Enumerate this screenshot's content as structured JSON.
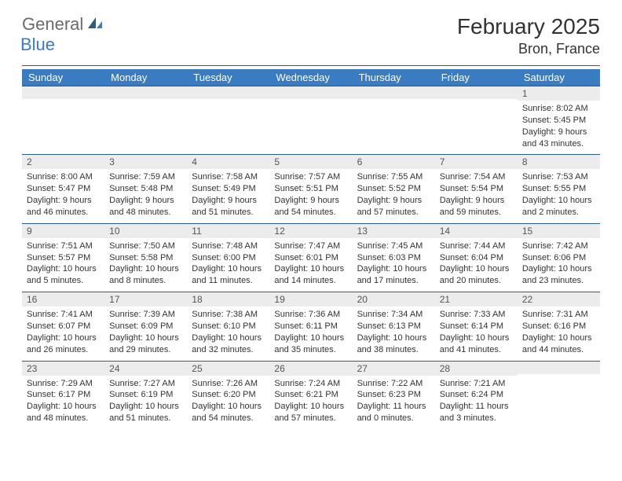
{
  "logo": {
    "text_general": "General",
    "text_blue": "Blue"
  },
  "title": "February 2025",
  "location": "Bron, France",
  "colors": {
    "header_bg": "#3a7cc2",
    "header_text": "#ffffff",
    "row_border": "#2a5b8a",
    "daynum_bg": "#ececec",
    "body_text": "#333333",
    "logo_gray": "#6b6b6b",
    "logo_blue": "#3a7cc2"
  },
  "day_headers": [
    "Sunday",
    "Monday",
    "Tuesday",
    "Wednesday",
    "Thursday",
    "Friday",
    "Saturday"
  ],
  "weeks": [
    [
      {
        "num": "",
        "sunrise": "",
        "sunset": "",
        "daylight": ""
      },
      {
        "num": "",
        "sunrise": "",
        "sunset": "",
        "daylight": ""
      },
      {
        "num": "",
        "sunrise": "",
        "sunset": "",
        "daylight": ""
      },
      {
        "num": "",
        "sunrise": "",
        "sunset": "",
        "daylight": ""
      },
      {
        "num": "",
        "sunrise": "",
        "sunset": "",
        "daylight": ""
      },
      {
        "num": "",
        "sunrise": "",
        "sunset": "",
        "daylight": ""
      },
      {
        "num": "1",
        "sunrise": "Sunrise: 8:02 AM",
        "sunset": "Sunset: 5:45 PM",
        "daylight": "Daylight: 9 hours and 43 minutes."
      }
    ],
    [
      {
        "num": "2",
        "sunrise": "Sunrise: 8:00 AM",
        "sunset": "Sunset: 5:47 PM",
        "daylight": "Daylight: 9 hours and 46 minutes."
      },
      {
        "num": "3",
        "sunrise": "Sunrise: 7:59 AM",
        "sunset": "Sunset: 5:48 PM",
        "daylight": "Daylight: 9 hours and 48 minutes."
      },
      {
        "num": "4",
        "sunrise": "Sunrise: 7:58 AM",
        "sunset": "Sunset: 5:49 PM",
        "daylight": "Daylight: 9 hours and 51 minutes."
      },
      {
        "num": "5",
        "sunrise": "Sunrise: 7:57 AM",
        "sunset": "Sunset: 5:51 PM",
        "daylight": "Daylight: 9 hours and 54 minutes."
      },
      {
        "num": "6",
        "sunrise": "Sunrise: 7:55 AM",
        "sunset": "Sunset: 5:52 PM",
        "daylight": "Daylight: 9 hours and 57 minutes."
      },
      {
        "num": "7",
        "sunrise": "Sunrise: 7:54 AM",
        "sunset": "Sunset: 5:54 PM",
        "daylight": "Daylight: 9 hours and 59 minutes."
      },
      {
        "num": "8",
        "sunrise": "Sunrise: 7:53 AM",
        "sunset": "Sunset: 5:55 PM",
        "daylight": "Daylight: 10 hours and 2 minutes."
      }
    ],
    [
      {
        "num": "9",
        "sunrise": "Sunrise: 7:51 AM",
        "sunset": "Sunset: 5:57 PM",
        "daylight": "Daylight: 10 hours and 5 minutes."
      },
      {
        "num": "10",
        "sunrise": "Sunrise: 7:50 AM",
        "sunset": "Sunset: 5:58 PM",
        "daylight": "Daylight: 10 hours and 8 minutes."
      },
      {
        "num": "11",
        "sunrise": "Sunrise: 7:48 AM",
        "sunset": "Sunset: 6:00 PM",
        "daylight": "Daylight: 10 hours and 11 minutes."
      },
      {
        "num": "12",
        "sunrise": "Sunrise: 7:47 AM",
        "sunset": "Sunset: 6:01 PM",
        "daylight": "Daylight: 10 hours and 14 minutes."
      },
      {
        "num": "13",
        "sunrise": "Sunrise: 7:45 AM",
        "sunset": "Sunset: 6:03 PM",
        "daylight": "Daylight: 10 hours and 17 minutes."
      },
      {
        "num": "14",
        "sunrise": "Sunrise: 7:44 AM",
        "sunset": "Sunset: 6:04 PM",
        "daylight": "Daylight: 10 hours and 20 minutes."
      },
      {
        "num": "15",
        "sunrise": "Sunrise: 7:42 AM",
        "sunset": "Sunset: 6:06 PM",
        "daylight": "Daylight: 10 hours and 23 minutes."
      }
    ],
    [
      {
        "num": "16",
        "sunrise": "Sunrise: 7:41 AM",
        "sunset": "Sunset: 6:07 PM",
        "daylight": "Daylight: 10 hours and 26 minutes."
      },
      {
        "num": "17",
        "sunrise": "Sunrise: 7:39 AM",
        "sunset": "Sunset: 6:09 PM",
        "daylight": "Daylight: 10 hours and 29 minutes."
      },
      {
        "num": "18",
        "sunrise": "Sunrise: 7:38 AM",
        "sunset": "Sunset: 6:10 PM",
        "daylight": "Daylight: 10 hours and 32 minutes."
      },
      {
        "num": "19",
        "sunrise": "Sunrise: 7:36 AM",
        "sunset": "Sunset: 6:11 PM",
        "daylight": "Daylight: 10 hours and 35 minutes."
      },
      {
        "num": "20",
        "sunrise": "Sunrise: 7:34 AM",
        "sunset": "Sunset: 6:13 PM",
        "daylight": "Daylight: 10 hours and 38 minutes."
      },
      {
        "num": "21",
        "sunrise": "Sunrise: 7:33 AM",
        "sunset": "Sunset: 6:14 PM",
        "daylight": "Daylight: 10 hours and 41 minutes."
      },
      {
        "num": "22",
        "sunrise": "Sunrise: 7:31 AM",
        "sunset": "Sunset: 6:16 PM",
        "daylight": "Daylight: 10 hours and 44 minutes."
      }
    ],
    [
      {
        "num": "23",
        "sunrise": "Sunrise: 7:29 AM",
        "sunset": "Sunset: 6:17 PM",
        "daylight": "Daylight: 10 hours and 48 minutes."
      },
      {
        "num": "24",
        "sunrise": "Sunrise: 7:27 AM",
        "sunset": "Sunset: 6:19 PM",
        "daylight": "Daylight: 10 hours and 51 minutes."
      },
      {
        "num": "25",
        "sunrise": "Sunrise: 7:26 AM",
        "sunset": "Sunset: 6:20 PM",
        "daylight": "Daylight: 10 hours and 54 minutes."
      },
      {
        "num": "26",
        "sunrise": "Sunrise: 7:24 AM",
        "sunset": "Sunset: 6:21 PM",
        "daylight": "Daylight: 10 hours and 57 minutes."
      },
      {
        "num": "27",
        "sunrise": "Sunrise: 7:22 AM",
        "sunset": "Sunset: 6:23 PM",
        "daylight": "Daylight: 11 hours and 0 minutes."
      },
      {
        "num": "28",
        "sunrise": "Sunrise: 7:21 AM",
        "sunset": "Sunset: 6:24 PM",
        "daylight": "Daylight: 11 hours and 3 minutes."
      },
      {
        "num": "",
        "sunrise": "",
        "sunset": "",
        "daylight": ""
      }
    ]
  ]
}
